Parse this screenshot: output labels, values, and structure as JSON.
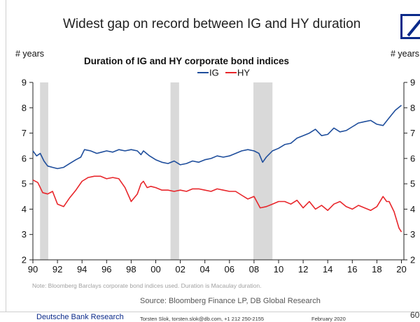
{
  "slide": {
    "title": "Widest gap on record between IG and HY duration",
    "note": "Note: Bloomberg Barclays corporate bond indices used. Duration is Macaulay duration.",
    "source": "Source: Bloomberg Finance LP, DB Global Research",
    "footer_brand": "Deutsche Bank Research",
    "footer_contact": "Torsten Slok, torsten.slok@db.com, +1 212 250-2155",
    "footer_date": "February 2020",
    "page_number": "60"
  },
  "colors": {
    "ig": "#1f4e9c",
    "hy": "#e8262b",
    "recession": "#d9d9d9",
    "logo": "#0b2a8a"
  },
  "chart_data": {
    "type": "line",
    "title": "Duration of IG and HY corporate bond indices",
    "ylabel_left": "# years",
    "ylabel_right": "# years",
    "legend_placement": "top-center",
    "xlim": [
      1990,
      2020.2
    ],
    "ylim": [
      2,
      9
    ],
    "x_ticks": [
      1990,
      1992,
      1994,
      1996,
      1998,
      2000,
      2002,
      2004,
      2006,
      2008,
      2010,
      2012,
      2014,
      2016,
      2018,
      2020
    ],
    "x_tick_labels": [
      "90",
      "92",
      "94",
      "96",
      "98",
      "00",
      "02",
      "04",
      "06",
      "08",
      "10",
      "12",
      "14",
      "16",
      "18",
      "20"
    ],
    "y_ticks": [
      2,
      3,
      4,
      5,
      6,
      7,
      8,
      9
    ],
    "y_tick_labels": [
      "2",
      "3",
      "4",
      "5",
      "6",
      "7",
      "8",
      "9"
    ],
    "recessions": [
      [
        1990.58,
        1991.25
      ],
      [
        2001.2,
        2001.9
      ],
      [
        2007.95,
        2009.5
      ]
    ],
    "series": [
      {
        "name": "IG",
        "color": "#1f4e9c",
        "points": [
          [
            1990.0,
            6.3
          ],
          [
            1990.3,
            6.1
          ],
          [
            1990.6,
            6.2
          ],
          [
            1990.9,
            5.9
          ],
          [
            1991.2,
            5.7
          ],
          [
            1991.6,
            5.65
          ],
          [
            1992.0,
            5.6
          ],
          [
            1992.5,
            5.65
          ],
          [
            1993.0,
            5.8
          ],
          [
            1993.5,
            5.95
          ],
          [
            1993.9,
            6.05
          ],
          [
            1994.2,
            6.35
          ],
          [
            1994.7,
            6.3
          ],
          [
            1995.2,
            6.2
          ],
          [
            1995.6,
            6.25
          ],
          [
            1996.0,
            6.3
          ],
          [
            1996.5,
            6.25
          ],
          [
            1997.0,
            6.35
          ],
          [
            1997.5,
            6.3
          ],
          [
            1998.0,
            6.35
          ],
          [
            1998.5,
            6.3
          ],
          [
            1998.8,
            6.15
          ],
          [
            1999.0,
            6.3
          ],
          [
            1999.5,
            6.1
          ],
          [
            2000.0,
            5.95
          ],
          [
            2000.5,
            5.85
          ],
          [
            2001.0,
            5.8
          ],
          [
            2001.5,
            5.9
          ],
          [
            2002.0,
            5.75
          ],
          [
            2002.5,
            5.8
          ],
          [
            2003.0,
            5.9
          ],
          [
            2003.5,
            5.85
          ],
          [
            2004.0,
            5.95
          ],
          [
            2004.5,
            6.0
          ],
          [
            2005.0,
            6.1
          ],
          [
            2005.5,
            6.05
          ],
          [
            2006.0,
            6.1
          ],
          [
            2006.5,
            6.2
          ],
          [
            2007.0,
            6.3
          ],
          [
            2007.5,
            6.35
          ],
          [
            2008.0,
            6.3
          ],
          [
            2008.4,
            6.2
          ],
          [
            2008.7,
            5.85
          ],
          [
            2009.0,
            6.05
          ],
          [
            2009.5,
            6.3
          ],
          [
            2010.0,
            6.4
          ],
          [
            2010.5,
            6.55
          ],
          [
            2011.0,
            6.6
          ],
          [
            2011.5,
            6.8
          ],
          [
            2012.0,
            6.9
          ],
          [
            2012.5,
            7.0
          ],
          [
            2013.0,
            7.15
          ],
          [
            2013.5,
            6.9
          ],
          [
            2014.0,
            6.95
          ],
          [
            2014.5,
            7.2
          ],
          [
            2015.0,
            7.05
          ],
          [
            2015.5,
            7.1
          ],
          [
            2016.0,
            7.25
          ],
          [
            2016.5,
            7.4
          ],
          [
            2017.0,
            7.45
          ],
          [
            2017.5,
            7.5
          ],
          [
            2018.0,
            7.35
          ],
          [
            2018.5,
            7.3
          ],
          [
            2019.0,
            7.6
          ],
          [
            2019.5,
            7.9
          ],
          [
            2020.0,
            8.1
          ]
        ]
      },
      {
        "name": "HY",
        "color": "#e8262b",
        "points": [
          [
            1990.0,
            5.15
          ],
          [
            1990.4,
            5.05
          ],
          [
            1990.8,
            4.65
          ],
          [
            1991.2,
            4.6
          ],
          [
            1991.6,
            4.7
          ],
          [
            1992.0,
            4.2
          ],
          [
            1992.5,
            4.1
          ],
          [
            1993.0,
            4.45
          ],
          [
            1993.5,
            4.75
          ],
          [
            1994.0,
            5.1
          ],
          [
            1994.5,
            5.25
          ],
          [
            1995.0,
            5.3
          ],
          [
            1995.5,
            5.3
          ],
          [
            1996.0,
            5.2
          ],
          [
            1996.5,
            5.25
          ],
          [
            1997.0,
            5.2
          ],
          [
            1997.5,
            4.85
          ],
          [
            1998.0,
            4.3
          ],
          [
            1998.5,
            4.6
          ],
          [
            1998.8,
            5.0
          ],
          [
            1999.0,
            5.1
          ],
          [
            1999.3,
            4.85
          ],
          [
            1999.6,
            4.9
          ],
          [
            2000.0,
            4.85
          ],
          [
            2000.5,
            4.75
          ],
          [
            2001.0,
            4.75
          ],
          [
            2001.5,
            4.7
          ],
          [
            2002.0,
            4.75
          ],
          [
            2002.5,
            4.7
          ],
          [
            2003.0,
            4.8
          ],
          [
            2003.5,
            4.8
          ],
          [
            2004.0,
            4.75
          ],
          [
            2004.5,
            4.7
          ],
          [
            2005.0,
            4.8
          ],
          [
            2005.5,
            4.75
          ],
          [
            2006.0,
            4.7
          ],
          [
            2006.5,
            4.7
          ],
          [
            2007.0,
            4.55
          ],
          [
            2007.5,
            4.4
          ],
          [
            2008.0,
            4.5
          ],
          [
            2008.5,
            4.05
          ],
          [
            2009.0,
            4.1
          ],
          [
            2009.5,
            4.2
          ],
          [
            2010.0,
            4.3
          ],
          [
            2010.5,
            4.3
          ],
          [
            2011.0,
            4.2
          ],
          [
            2011.5,
            4.35
          ],
          [
            2012.0,
            4.05
          ],
          [
            2012.5,
            4.3
          ],
          [
            2013.0,
            4.0
          ],
          [
            2013.5,
            4.15
          ],
          [
            2014.0,
            3.95
          ],
          [
            2014.5,
            4.2
          ],
          [
            2015.0,
            4.3
          ],
          [
            2015.5,
            4.1
          ],
          [
            2016.0,
            4.0
          ],
          [
            2016.5,
            4.15
          ],
          [
            2017.0,
            4.05
          ],
          [
            2017.5,
            3.95
          ],
          [
            2018.0,
            4.1
          ],
          [
            2018.5,
            4.5
          ],
          [
            2018.8,
            4.3
          ],
          [
            2019.0,
            4.3
          ],
          [
            2019.4,
            3.9
          ],
          [
            2019.8,
            3.25
          ],
          [
            2020.0,
            3.1
          ]
        ]
      }
    ]
  }
}
